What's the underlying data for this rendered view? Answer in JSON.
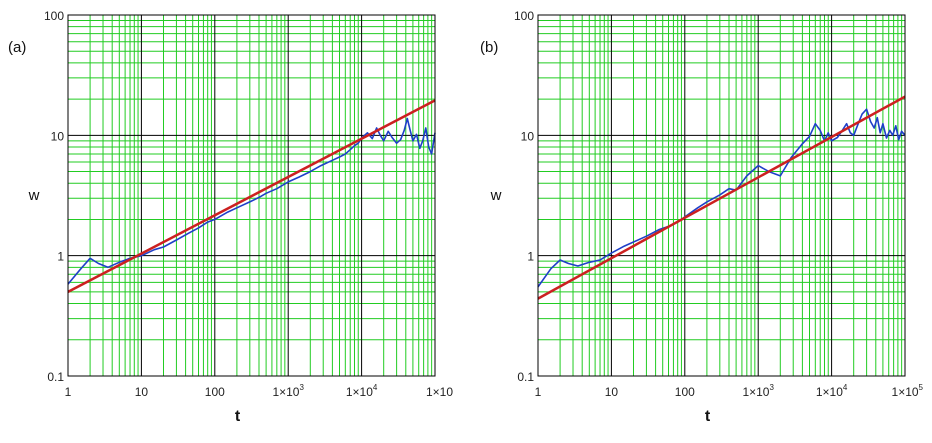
{
  "colors": {
    "major_grid": "#000000",
    "minor_grid": "#22cc22",
    "data_line": "#1f3fc8",
    "fit_line": "#cc2020"
  },
  "chart_data": [
    {
      "type": "line",
      "panel_label": "(a)",
      "xlabel": "t",
      "ylabel": "w",
      "xscale": "log",
      "yscale": "log",
      "xlim": [
        1,
        100000
      ],
      "ylim": [
        0.1,
        100
      ],
      "grid": true,
      "x_tick_labels": [
        "1",
        "10",
        "100",
        "1×10",
        "1×10",
        "1×10"
      ],
      "x_tick_exponents": [
        "",
        "",
        "",
        "3",
        "4",
        ""
      ],
      "y_tick_labels": [
        "0.1",
        "1",
        "10",
        "100"
      ],
      "series": [
        {
          "role": "data",
          "color": "#1f3fc8",
          "x": [
            1,
            1.5,
            2,
            2.6,
            3.5,
            5,
            7,
            10,
            15,
            20,
            30,
            45,
            60,
            80,
            100,
            150,
            200,
            300,
            400,
            500,
            700,
            1000,
            1400,
            2000,
            2800,
            4000,
            5000,
            6000,
            7000,
            8000,
            9000,
            10000,
            12000,
            14000,
            16000,
            18000,
            20000,
            23000,
            26000,
            30000,
            34000,
            38000,
            42000,
            46000,
            50000,
            56000,
            62000,
            68000,
            75000,
            82000,
            90000,
            100000
          ],
          "y": [
            0.58,
            0.78,
            0.95,
            0.86,
            0.8,
            0.88,
            0.95,
            1.0,
            1.12,
            1.18,
            1.35,
            1.55,
            1.7,
            1.9,
            2.0,
            2.3,
            2.5,
            2.8,
            3.05,
            3.3,
            3.6,
            4.1,
            4.5,
            5.0,
            5.6,
            6.2,
            6.6,
            7.0,
            7.6,
            8.2,
            8.6,
            9.5,
            10.5,
            9.4,
            11.5,
            10.0,
            9.0,
            10.8,
            9.6,
            8.6,
            9.2,
            11.0,
            13.8,
            11.0,
            9.0,
            10.2,
            7.8,
            9.0,
            11.5,
            8.0,
            7.0,
            10.5
          ]
        },
        {
          "role": "fit",
          "color": "#cc2020",
          "x": [
            1,
            100000
          ],
          "y": [
            0.5,
            19.5
          ]
        }
      ]
    },
    {
      "type": "line",
      "panel_label": "(b)",
      "xlabel": "t",
      "ylabel": "w",
      "xscale": "log",
      "yscale": "log",
      "xlim": [
        1,
        100000
      ],
      "ylim": [
        0.1,
        100
      ],
      "grid": true,
      "x_tick_labels": [
        "1",
        "10",
        "100",
        "1×10",
        "1×10",
        "1×10"
      ],
      "x_tick_exponents": [
        "",
        "",
        "",
        "3",
        "4",
        "5"
      ],
      "y_tick_labels": [
        "0.1",
        "1",
        "10",
        "100"
      ],
      "series": [
        {
          "role": "data",
          "color": "#1f3fc8",
          "x": [
            1,
            1.5,
            2,
            2.6,
            3.5,
            5,
            7,
            10,
            15,
            20,
            30,
            45,
            60,
            80,
            100,
            150,
            200,
            300,
            400,
            500,
            700,
            1000,
            1400,
            2000,
            2800,
            4000,
            5000,
            6000,
            7000,
            8000,
            9000,
            10000,
            12000,
            14000,
            16000,
            18000,
            20000,
            23000,
            26000,
            30000,
            34000,
            38000,
            42000,
            46000,
            50000,
            56000,
            62000,
            68000,
            75000,
            82000,
            90000,
            100000
          ],
          "y": [
            0.55,
            0.78,
            0.92,
            0.86,
            0.82,
            0.88,
            0.92,
            1.05,
            1.2,
            1.3,
            1.45,
            1.65,
            1.75,
            1.9,
            2.1,
            2.5,
            2.8,
            3.2,
            3.6,
            3.5,
            4.6,
            5.6,
            5.0,
            4.6,
            6.5,
            8.5,
            9.8,
            12.5,
            11.0,
            9.0,
            10.5,
            9.0,
            9.6,
            11.0,
            12.5,
            10.5,
            10.0,
            12.5,
            15.0,
            16.5,
            13.0,
            11.5,
            14.0,
            10.5,
            12.5,
            9.5,
            11.0,
            10.0,
            12.0,
            9.2,
            10.8,
            10.0
          ]
        },
        {
          "role": "fit",
          "color": "#cc2020",
          "x": [
            1,
            100000
          ],
          "y": [
            0.44,
            21
          ]
        }
      ]
    }
  ]
}
